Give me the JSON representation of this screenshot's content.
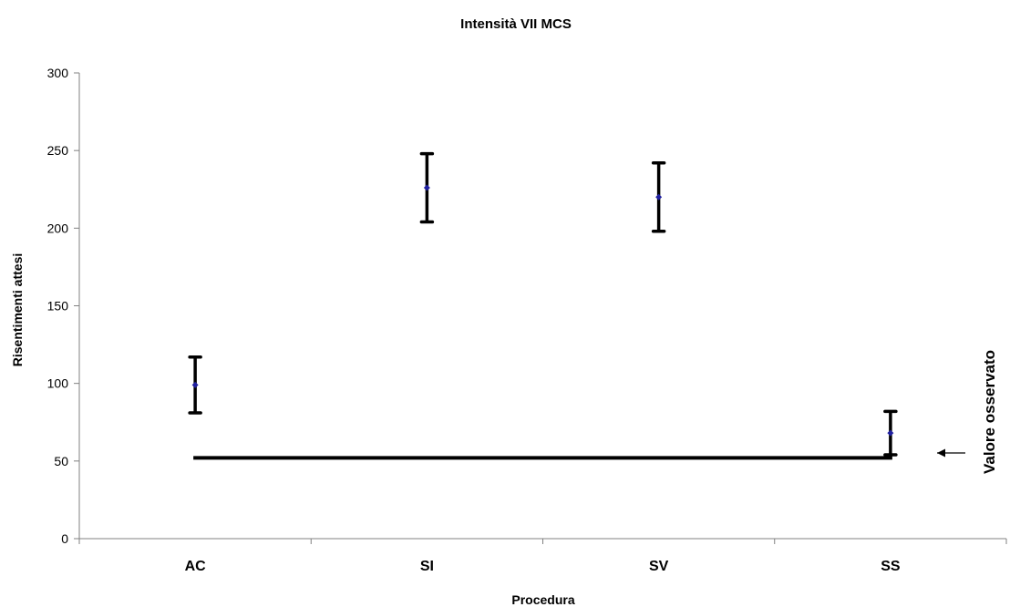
{
  "chart_data": {
    "type": "scatter",
    "title": "Intensità VII MCS",
    "xlabel": "Procedura",
    "ylabel": "Risentimenti attesi",
    "ylim": [
      0,
      300
    ],
    "yticks": [
      "0",
      "50",
      "100",
      "150",
      "200",
      "250",
      "300"
    ],
    "categories": [
      "AC",
      "SI",
      "SV",
      "SS"
    ],
    "series": [
      {
        "values": [
          99,
          226,
          220,
          68
        ],
        "error_low": [
          81,
          204,
          198,
          54
        ],
        "error_high": [
          117,
          248,
          242,
          82
        ]
      }
    ],
    "observed_value": 52,
    "annotation": "Valore osservato",
    "grid": false,
    "legend": "none",
    "colors": {
      "point": "#1f1fa0",
      "error_bar": "#000000",
      "observed_line": "#000000",
      "axis": "#808080"
    }
  }
}
